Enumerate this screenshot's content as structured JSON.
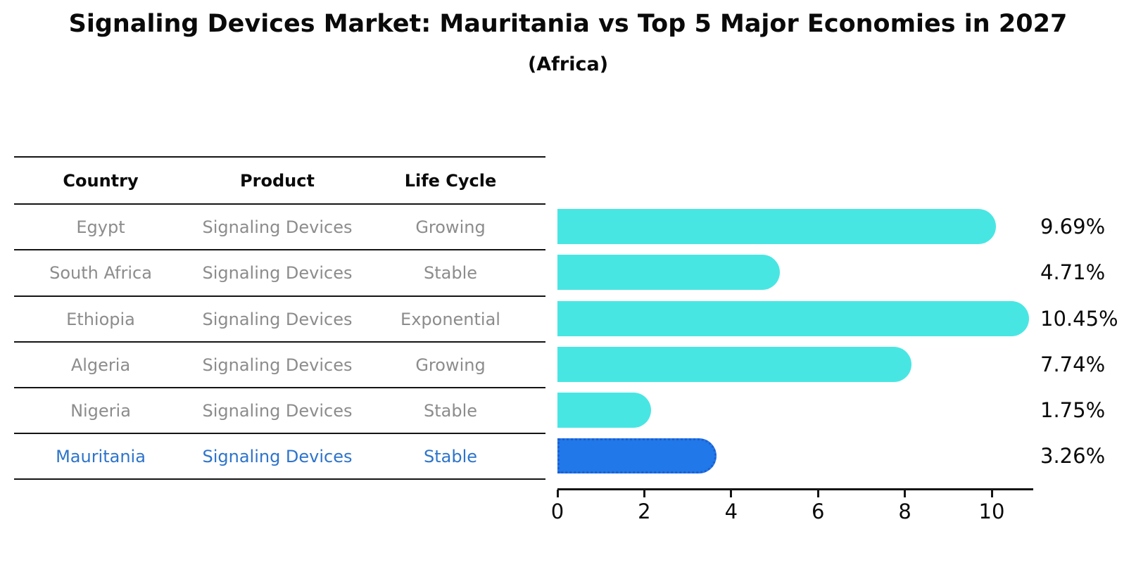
{
  "title": "Signaling Devices Market: Mauritania vs Top 5 Major Economies in 2027",
  "subtitle": "(Africa)",
  "table": {
    "headers": [
      "Country",
      "Product",
      "Life Cycle"
    ],
    "rows": [
      {
        "country": "Egypt",
        "product": "Signaling Devices",
        "life_cycle": "Growing",
        "highlight": false
      },
      {
        "country": "South Africa",
        "product": "Signaling Devices",
        "life_cycle": "Stable",
        "highlight": false
      },
      {
        "country": "Ethiopia",
        "product": "Signaling Devices",
        "life_cycle": "Exponential",
        "highlight": false
      },
      {
        "country": "Algeria",
        "product": "Signaling Devices",
        "life_cycle": "Growing",
        "highlight": false
      },
      {
        "country": "Nigeria",
        "product": "Signaling Devices",
        "life_cycle": "Stable",
        "highlight": false
      },
      {
        "country": "Mauritania",
        "product": "Signaling Devices",
        "life_cycle": "Stable",
        "highlight": true
      }
    ]
  },
  "chart_data": {
    "type": "bar",
    "orientation": "horizontal",
    "title": "Signaling Devices Market: Mauritania vs Top 5 Major Economies in 2027 (Africa)",
    "categories": [
      "Egypt",
      "South Africa",
      "Ethiopia",
      "Algeria",
      "Nigeria",
      "Mauritania"
    ],
    "values": [
      9.69,
      4.71,
      10.45,
      7.74,
      1.75,
      3.26
    ],
    "value_labels": [
      "9.69%",
      "4.71%",
      "10.45%",
      "7.74%",
      "1.75%",
      "3.26%"
    ],
    "x_ticks": [
      "0",
      "2",
      "4",
      "6",
      "8",
      "10"
    ],
    "xlim": [
      0,
      11
    ],
    "grid": false,
    "legend": "none",
    "highlight_index": 5,
    "colors": {
      "bar": "#48e6e3",
      "highlight_bar": "#2178e8",
      "highlight_border": "#1b5fd3",
      "axis": "#141414",
      "row_text": "#8c8c8c",
      "highlight_text": "#2d74ca"
    }
  }
}
